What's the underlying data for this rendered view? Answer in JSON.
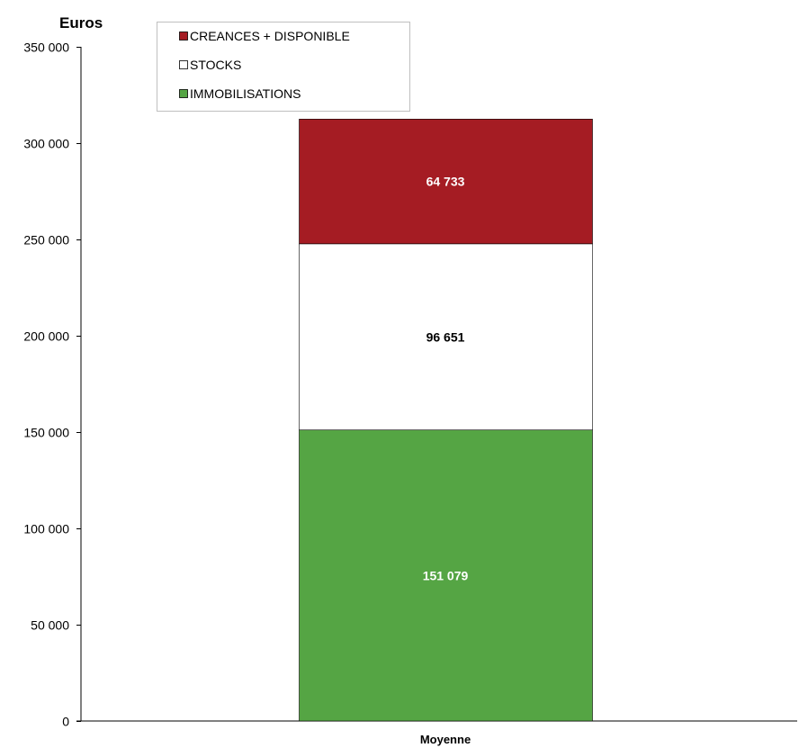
{
  "chart_data": {
    "type": "bar",
    "stacked": true,
    "ylabel": "Euros",
    "xlabel": "",
    "ylim": [
      0,
      350000
    ],
    "yticks": [
      0,
      50000,
      100000,
      150000,
      200000,
      250000,
      300000,
      350000
    ],
    "ytick_labels": [
      "0",
      "50 000",
      "100 000",
      "150 000",
      "200 000",
      "250 000",
      "300 000",
      "350 000"
    ],
    "categories": [
      "Moyenne"
    ],
    "grid": false,
    "legend_position": "top-left",
    "series": [
      {
        "name": "IMMOBILISATIONS",
        "values": [
          151079
        ],
        "labels": [
          "151 079"
        ],
        "color": "#55a544",
        "label_color": "#ffffff"
      },
      {
        "name": "STOCKS",
        "values": [
          96651
        ],
        "labels": [
          "96 651"
        ],
        "color": "#ffffff",
        "label_color": "#000000"
      },
      {
        "name": "CREANCES + DISPONIBLE",
        "values": [
          64733
        ],
        "labels": [
          "64 733"
        ],
        "color": "#a51c23",
        "label_color": "#ffffff"
      }
    ],
    "legend_order": [
      "CREANCES + DISPONIBLE",
      "STOCKS",
      "IMMOBILISATIONS"
    ]
  }
}
